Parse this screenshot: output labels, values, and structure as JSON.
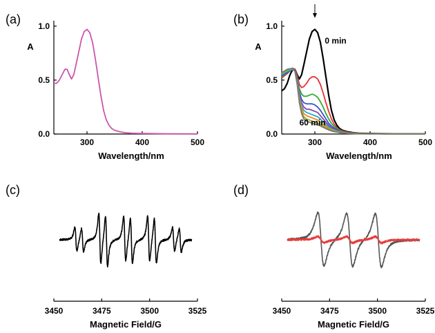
{
  "chart_data": [
    {
      "panel": "(a)",
      "type": "line",
      "xlabel": "Wavelength/nm",
      "ylabel": "A",
      "xlim": [
        240,
        500
      ],
      "ylim": [
        0,
        1.05
      ],
      "xticks": [
        300,
        400,
        500
      ],
      "yticks": [
        0.0,
        0.5,
        1.0
      ],
      "ytick_labels": [
        "0.0",
        "0.5",
        "1.0"
      ],
      "series": [
        {
          "color": "#cc55aa",
          "x": [
            240,
            245,
            250,
            255,
            260,
            264,
            268,
            272,
            276,
            280,
            285,
            290,
            295,
            300,
            305,
            310,
            315,
            320,
            325,
            330,
            335,
            340,
            345,
            350,
            360,
            370,
            380,
            400,
            430,
            460,
            500
          ],
          "y": [
            0.47,
            0.47,
            0.5,
            0.55,
            0.6,
            0.6,
            0.55,
            0.51,
            0.55,
            0.64,
            0.76,
            0.88,
            0.95,
            0.97,
            0.94,
            0.85,
            0.7,
            0.53,
            0.36,
            0.22,
            0.13,
            0.08,
            0.05,
            0.035,
            0.02,
            0.012,
            0.008,
            0.005,
            0.003,
            0.002,
            0.001
          ]
        }
      ]
    },
    {
      "panel": "(b)",
      "type": "line",
      "xlabel": "Wavelength/nm",
      "ylabel": "A",
      "xlim": [
        240,
        500
      ],
      "ylim": [
        0,
        1.05
      ],
      "xticks": [
        300,
        400,
        500
      ],
      "yticks": [
        0.0,
        0.5,
        1.0
      ],
      "ytick_labels": [
        "0.0",
        "0.5",
        "1.0"
      ],
      "annotations": [
        "0 min",
        "60 min"
      ],
      "arrow_x": 300,
      "series": [
        {
          "color": "#000000",
          "x": [
            240,
            245,
            250,
            255,
            260,
            264,
            268,
            272,
            276,
            280,
            285,
            290,
            295,
            300,
            305,
            310,
            315,
            320,
            325,
            330,
            335,
            340,
            345,
            350,
            360,
            370,
            380,
            400,
            430,
            460,
            500
          ],
          "y": [
            0.4,
            0.42,
            0.47,
            0.55,
            0.6,
            0.6,
            0.55,
            0.51,
            0.55,
            0.64,
            0.76,
            0.88,
            0.95,
            0.97,
            0.94,
            0.85,
            0.7,
            0.53,
            0.36,
            0.22,
            0.13,
            0.08,
            0.05,
            0.035,
            0.02,
            0.012,
            0.008,
            0.005,
            0.003,
            0.002,
            0.001
          ]
        },
        {
          "color": "#e83030",
          "x": [
            240,
            250,
            260,
            264,
            268,
            272,
            276,
            280,
            285,
            290,
            295,
            300,
            305,
            310,
            315,
            320,
            325,
            330,
            335,
            340,
            345,
            350,
            360,
            370,
            380,
            400,
            430,
            460,
            500
          ],
          "y": [
            0.52,
            0.56,
            0.61,
            0.6,
            0.54,
            0.46,
            0.43,
            0.44,
            0.47,
            0.51,
            0.53,
            0.53,
            0.51,
            0.46,
            0.38,
            0.29,
            0.21,
            0.14,
            0.09,
            0.06,
            0.04,
            0.03,
            0.015,
            0.01,
            0.006,
            0.004,
            0.002,
            0.001,
            0.001
          ]
        },
        {
          "color": "#33aa33",
          "x": [
            240,
            250,
            260,
            264,
            268,
            272,
            276,
            280,
            285,
            290,
            295,
            300,
            305,
            310,
            315,
            320,
            325,
            330,
            335,
            340,
            345,
            350,
            360,
            370,
            380,
            400,
            430,
            460,
            500
          ],
          "y": [
            0.53,
            0.57,
            0.6,
            0.59,
            0.52,
            0.42,
            0.37,
            0.35,
            0.35,
            0.36,
            0.37,
            0.36,
            0.34,
            0.3,
            0.25,
            0.19,
            0.14,
            0.1,
            0.07,
            0.05,
            0.035,
            0.025,
            0.013,
            0.008,
            0.005,
            0.003,
            0.002,
            0.001,
            0.001
          ]
        },
        {
          "color": "#3355cc",
          "x": [
            240,
            250,
            260,
            264,
            268,
            272,
            276,
            280,
            285,
            290,
            295,
            300,
            305,
            310,
            315,
            320,
            325,
            330,
            335,
            340,
            345,
            350,
            360,
            370,
            380,
            400,
            430,
            460,
            500
          ],
          "y": [
            0.54,
            0.57,
            0.6,
            0.59,
            0.51,
            0.39,
            0.32,
            0.29,
            0.28,
            0.28,
            0.28,
            0.27,
            0.25,
            0.22,
            0.18,
            0.14,
            0.1,
            0.075,
            0.055,
            0.04,
            0.03,
            0.02,
            0.011,
            0.007,
            0.004,
            0.003,
            0.002,
            0.001,
            0.001
          ]
        },
        {
          "color": "#8844aa",
          "x": [
            240,
            250,
            260,
            264,
            268,
            272,
            276,
            280,
            285,
            290,
            295,
            300,
            305,
            310,
            315,
            320,
            325,
            330,
            335,
            340,
            345,
            350,
            360,
            370,
            380,
            400,
            430,
            460,
            500
          ],
          "y": [
            0.55,
            0.58,
            0.6,
            0.58,
            0.5,
            0.37,
            0.29,
            0.25,
            0.23,
            0.23,
            0.22,
            0.21,
            0.2,
            0.17,
            0.14,
            0.11,
            0.08,
            0.06,
            0.045,
            0.033,
            0.025,
            0.018,
            0.01,
            0.006,
            0.004,
            0.003,
            0.002,
            0.001,
            0.001
          ]
        },
        {
          "color": "#22aacc",
          "x": [
            240,
            250,
            260,
            264,
            268,
            272,
            276,
            280,
            285,
            290,
            295,
            300,
            305,
            310,
            315,
            320,
            325,
            330,
            335,
            340,
            345,
            350,
            360,
            370,
            380,
            400,
            430,
            460,
            500
          ],
          "y": [
            0.55,
            0.58,
            0.6,
            0.58,
            0.49,
            0.35,
            0.26,
            0.22,
            0.2,
            0.19,
            0.18,
            0.17,
            0.16,
            0.14,
            0.11,
            0.09,
            0.065,
            0.05,
            0.038,
            0.028,
            0.021,
            0.016,
            0.009,
            0.006,
            0.004,
            0.003,
            0.002,
            0.001,
            0.001
          ]
        },
        {
          "color": "#ee8822",
          "x": [
            240,
            250,
            260,
            264,
            268,
            272,
            276,
            280,
            285,
            290,
            295,
            300,
            305,
            310,
            315,
            320,
            325,
            330,
            335,
            340,
            345,
            350,
            360,
            370,
            380,
            400,
            430,
            460,
            500
          ],
          "y": [
            0.56,
            0.59,
            0.61,
            0.58,
            0.48,
            0.33,
            0.24,
            0.19,
            0.17,
            0.16,
            0.15,
            0.14,
            0.13,
            0.11,
            0.09,
            0.075,
            0.055,
            0.042,
            0.032,
            0.024,
            0.018,
            0.014,
            0.008,
            0.005,
            0.004,
            0.003,
            0.002,
            0.001,
            0.001
          ]
        },
        {
          "color": "#99aa22",
          "x": [
            240,
            250,
            260,
            264,
            268,
            272,
            276,
            280,
            285,
            290,
            295,
            300,
            305,
            310,
            315,
            320,
            325,
            330,
            335,
            340,
            345,
            350,
            360,
            370,
            380,
            400,
            430,
            460,
            500
          ],
          "y": [
            0.56,
            0.59,
            0.61,
            0.58,
            0.47,
            0.31,
            0.21,
            0.16,
            0.14,
            0.13,
            0.12,
            0.11,
            0.1,
            0.09,
            0.075,
            0.06,
            0.045,
            0.035,
            0.027,
            0.02,
            0.015,
            0.012,
            0.007,
            0.005,
            0.004,
            0.003,
            0.002,
            0.001,
            0.001
          ]
        },
        {
          "color": "#777777",
          "x": [
            240,
            250,
            260,
            264,
            268,
            272,
            276,
            280,
            285,
            290,
            295,
            300,
            305,
            310,
            315,
            320,
            325,
            330,
            335,
            340,
            345,
            350,
            360,
            370,
            380,
            400,
            430,
            460,
            500
          ],
          "y": [
            0.57,
            0.6,
            0.61,
            0.58,
            0.46,
            0.29,
            0.19,
            0.14,
            0.12,
            0.11,
            0.1,
            0.09,
            0.085,
            0.075,
            0.062,
            0.05,
            0.038,
            0.029,
            0.022,
            0.017,
            0.013,
            0.01,
            0.006,
            0.004,
            0.003,
            0.002,
            0.002,
            0.001,
            0.001
          ]
        }
      ]
    },
    {
      "panel": "(c)",
      "type": "line",
      "xlabel": "Magnetic Field/G",
      "xlim": [
        3450,
        3525
      ],
      "xticks": [
        3450,
        3475,
        3500,
        3525
      ],
      "ylim": [
        -1,
        1
      ],
      "series": [
        {
          "color": "#000000",
          "lines": [
            {
              "field": 3461.5,
              "amp": 0.45
            },
            {
              "field": 3465.0,
              "amp": 0.45
            },
            {
              "field": 3474.0,
              "amp": 0.95
            },
            {
              "field": 3477.5,
              "amp": 0.95
            },
            {
              "field": 3487.0,
              "amp": 0.85
            },
            {
              "field": 3490.5,
              "amp": 0.85
            },
            {
              "field": 3499.5,
              "amp": 0.85
            },
            {
              "field": 3503.0,
              "amp": 0.85
            },
            {
              "field": 3512.5,
              "amp": 0.45
            },
            {
              "field": 3516.0,
              "amp": 0.45
            }
          ],
          "sub_split": 1.4,
          "linewidth": 0.55
        }
      ]
    },
    {
      "panel": "(d)",
      "type": "line",
      "xlabel": "Magnetic Field/G",
      "xlim": [
        3450,
        3525
      ],
      "xticks": [
        3450,
        3475,
        3500,
        3525
      ],
      "ylim": [
        -1,
        1
      ],
      "series": [
        {
          "color": "#555555",
          "lines": [
            {
              "field": 3470.5,
              "amp": 1.0
            },
            {
              "field": 3485.5,
              "amp": 1.0
            },
            {
              "field": 3500.5,
              "amp": 1.0
            }
          ],
          "linewidth": 1.6
        },
        {
          "color": "#e83c3c",
          "lines": [
            {
              "field": 3470.5,
              "amp": 0.12
            },
            {
              "field": 3485.5,
              "amp": 0.12
            },
            {
              "field": 3500.5,
              "amp": 0.12
            }
          ],
          "linewidth": 1.6
        }
      ]
    }
  ]
}
